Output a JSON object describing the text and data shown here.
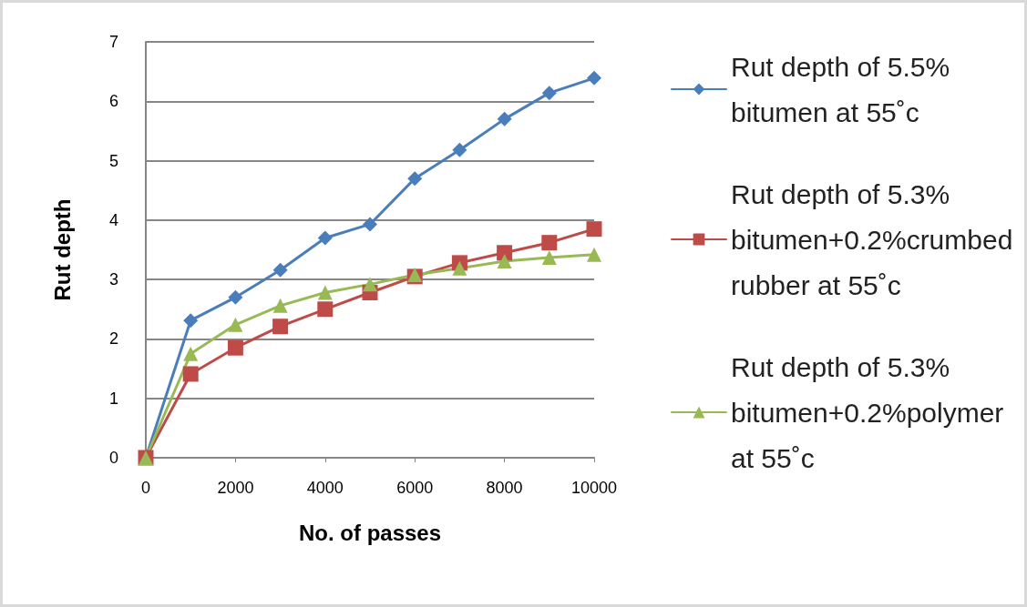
{
  "chart_data": {
    "type": "line",
    "xlabel": "No. of passes",
    "ylabel": "Rut depth",
    "x": [
      0,
      1000,
      2000,
      3000,
      4000,
      5000,
      6000,
      7000,
      8000,
      9000,
      10000
    ],
    "series": [
      {
        "name": "Rut depth of 5.5% bitumen at 55˚c",
        "color": "#4a7ebb",
        "marker": "diamond",
        "values": [
          0,
          2.31,
          2.7,
          3.16,
          3.7,
          3.93,
          4.7,
          5.18,
          5.7,
          6.14,
          6.39
        ]
      },
      {
        "name": "Rut depth of 5.3% bitumen+0.2%crumbed rubber at 55˚c",
        "color": "#be4b48",
        "marker": "square",
        "values": [
          0,
          1.41,
          1.85,
          2.21,
          2.5,
          2.78,
          3.05,
          3.28,
          3.45,
          3.62,
          3.85
        ]
      },
      {
        "name": "Rut depth of 5.3% bitumen+0.2%polymer at 55˚c",
        "color": "#98b954",
        "marker": "triangle",
        "values": [
          0,
          1.75,
          2.24,
          2.56,
          2.78,
          2.92,
          3.08,
          3.19,
          3.31,
          3.37,
          3.42
        ]
      }
    ],
    "xlim": [
      0,
      10000
    ],
    "xticks": [
      0,
      2000,
      4000,
      6000,
      8000,
      10000
    ],
    "ylim": [
      0,
      7
    ],
    "yticks": [
      0,
      1,
      2,
      3,
      4,
      5,
      6,
      7
    ],
    "grid": "y",
    "legend": "right",
    "line_style": "solid"
  }
}
